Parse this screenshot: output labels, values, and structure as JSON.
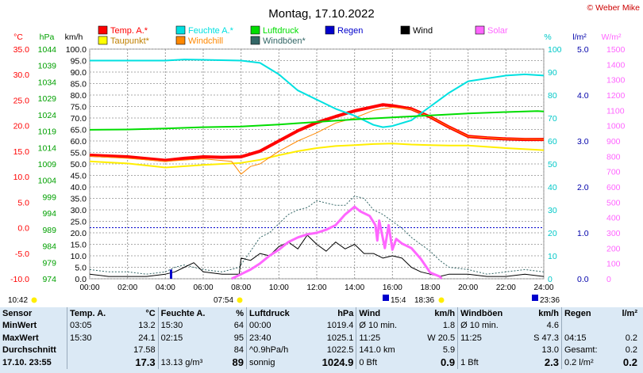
{
  "chart_data": {
    "type": "line",
    "title": "Montag, 17.10.2022",
    "copyright": "© Weber Mike",
    "axis_units": {
      "temp": "°C",
      "pressure": "hPa",
      "speed": "km/h",
      "humidity": "%",
      "rain": "l/m²",
      "solar": "W/m²"
    },
    "axes": {
      "temp": {
        "ticks": [
          "35.0",
          "30.0",
          "25.0",
          "20.0",
          "15.0",
          "10.0",
          "5.0",
          "0.0",
          "-5.0",
          "-10.0"
        ],
        "range": [
          -10,
          35
        ],
        "color": "#ff0000"
      },
      "pressure": {
        "ticks": [
          "1044",
          "1039",
          "1034",
          "1029",
          "1024",
          "1019",
          "1014",
          "1009",
          "1004",
          "999",
          "994",
          "989",
          "984",
          "979",
          "974"
        ],
        "range": [
          974,
          1044
        ],
        "color": "#00a000"
      },
      "speed": {
        "ticks": [
          "100.0",
          "95.0",
          "90.0",
          "85.0",
          "80.0",
          "75.0",
          "70.0",
          "65.0",
          "60.0",
          "55.0",
          "50.0",
          "45.0",
          "40.0",
          "35.0",
          "30.0",
          "25.0",
          "20.0",
          "15.0",
          "10.0",
          "5.0",
          "0.0"
        ],
        "range": [
          0,
          100
        ],
        "color": "#000000"
      },
      "humidity": {
        "ticks": [
          "100",
          "90",
          "80",
          "70",
          "60",
          "50",
          "40",
          "30",
          "20",
          "10",
          "0"
        ],
        "range": [
          0,
          100
        ],
        "color": "#00c8c8"
      },
      "rain": {
        "ticks": [
          "5.0",
          "4.0",
          "3.0",
          "2.0",
          "1.0",
          "0.0"
        ],
        "range": [
          0,
          5
        ],
        "color": "#0000aa"
      },
      "solar": {
        "ticks": [
          "1500",
          "1400",
          "1300",
          "1200",
          "1100",
          "1000",
          "900",
          "800",
          "700",
          "600",
          "500",
          "400",
          "300",
          "200",
          "100",
          "0"
        ],
        "range": [
          0,
          1500
        ],
        "color": "#ff66ff"
      }
    },
    "x_range": [
      0,
      24
    ],
    "x_ticks": [
      "00:00",
      "02:00",
      "04:00",
      "06:00",
      "08:00",
      "10:00",
      "12:00",
      "14:00",
      "16:00",
      "18:00",
      "20:00",
      "22:00",
      "24:00"
    ],
    "x_markers": [
      "10:42",
      "07:54",
      "15:4",
      "18:36",
      "23:36"
    ],
    "grid": true,
    "legend_position": "top",
    "legend": [
      {
        "label": "Temp. A.*",
        "color": "#ff0000"
      },
      {
        "label": "Feuchte A.*",
        "color": "#00e0e0"
      },
      {
        "label": "Luftdruck",
        "color": "#00dd00"
      },
      {
        "label": "Regen",
        "color": "#0000cc"
      },
      {
        "label": "Wind",
        "color": "#000000"
      },
      {
        "label": "Solar",
        "color": "#ff66ff"
      },
      {
        "label": "Taupunkt*",
        "color": "#ffff00"
      },
      {
        "label": "Windchill",
        "color": "#ff8800"
      },
      {
        "label": "Windböen*",
        "color": "#336666"
      }
    ],
    "series": [
      {
        "name": "Temp. A.*",
        "axis": "temp",
        "color": "#ff0000",
        "width": 4,
        "points": [
          [
            0,
            14.2
          ],
          [
            2,
            13.9
          ],
          [
            4,
            13.2
          ],
          [
            5,
            13.6
          ],
          [
            6,
            13.9
          ],
          [
            7,
            13.8
          ],
          [
            8,
            13.9
          ],
          [
            9,
            15.0
          ],
          [
            10,
            17.0
          ],
          [
            11,
            19.0
          ],
          [
            12,
            20.6
          ],
          [
            13,
            21.8
          ],
          [
            14,
            22.9
          ],
          [
            15,
            23.7
          ],
          [
            15.5,
            24.1
          ],
          [
            16,
            23.9
          ],
          [
            17,
            23.3
          ],
          [
            18,
            21.7
          ],
          [
            19,
            19.7
          ],
          [
            20,
            17.9
          ],
          [
            21,
            17.6
          ],
          [
            22,
            17.4
          ],
          [
            23,
            17.3
          ],
          [
            24,
            17.3
          ]
        ]
      },
      {
        "name": "Taupunkt*",
        "axis": "temp",
        "color": "#ffee00",
        "width": 2,
        "points": [
          [
            0,
            13.0
          ],
          [
            2,
            12.6
          ],
          [
            4,
            11.8
          ],
          [
            6,
            12.3
          ],
          [
            8,
            12.7
          ],
          [
            9,
            13.3
          ],
          [
            10,
            14.2
          ],
          [
            11,
            15.0
          ],
          [
            12,
            15.6
          ],
          [
            13,
            16.0
          ],
          [
            14,
            16.2
          ],
          [
            15,
            16.4
          ],
          [
            16,
            16.5
          ],
          [
            17,
            16.3
          ],
          [
            18,
            16.2
          ],
          [
            19,
            16.1
          ],
          [
            20,
            16.1
          ],
          [
            22,
            15.6
          ],
          [
            24,
            15.2
          ]
        ]
      },
      {
        "name": "Windchill",
        "axis": "temp",
        "color": "#ff8800",
        "width": 1,
        "points": [
          [
            0,
            14.0
          ],
          [
            2,
            13.6
          ],
          [
            4,
            13.0
          ],
          [
            6,
            13.5
          ],
          [
            7.5,
            13.0
          ],
          [
            7.9,
            11.0
          ],
          [
            8.0,
            10.5
          ],
          [
            8.5,
            12.0
          ],
          [
            9,
            12.5
          ],
          [
            10,
            15.0
          ],
          [
            11,
            17.0
          ],
          [
            12,
            18.6
          ],
          [
            13,
            20.5
          ],
          [
            14,
            21.5
          ],
          [
            15,
            23.0
          ],
          [
            16,
            23.6
          ],
          [
            17,
            23.2
          ],
          [
            18,
            21.7
          ],
          [
            19,
            19.7
          ],
          [
            20,
            17.9
          ],
          [
            22,
            17.4
          ],
          [
            24,
            17.3
          ]
        ]
      },
      {
        "name": "Feuchte A.*",
        "axis": "humidity",
        "color": "#00e0e0",
        "width": 2,
        "points": [
          [
            0,
            95
          ],
          [
            2,
            95
          ],
          [
            4,
            95
          ],
          [
            5,
            95.5
          ],
          [
            8,
            95
          ],
          [
            9,
            94
          ],
          [
            10,
            89
          ],
          [
            11,
            82
          ],
          [
            12,
            78
          ],
          [
            13,
            74
          ],
          [
            14,
            71
          ],
          [
            15,
            67
          ],
          [
            15.5,
            66
          ],
          [
            16,
            66.5
          ],
          [
            17,
            69
          ],
          [
            18,
            75
          ],
          [
            19,
            81
          ],
          [
            20,
            86
          ],
          [
            22,
            88.5
          ],
          [
            23,
            89
          ],
          [
            24,
            88.5
          ]
        ]
      },
      {
        "name": "Luftdruck",
        "axis": "pressure",
        "color": "#00dd00",
        "width": 2,
        "points": [
          [
            0,
            1019.4
          ],
          [
            2,
            1019.5
          ],
          [
            4,
            1019.8
          ],
          [
            6,
            1020.2
          ],
          [
            8,
            1020.4
          ],
          [
            10,
            1021.0
          ],
          [
            12,
            1021.8
          ],
          [
            14,
            1022.6
          ],
          [
            16,
            1023.2
          ],
          [
            18,
            1023.8
          ],
          [
            20,
            1024.4
          ],
          [
            22,
            1024.8
          ],
          [
            23.67,
            1025.1
          ],
          [
            24,
            1025.0
          ]
        ]
      },
      {
        "name": "Windböen*",
        "axis": "speed",
        "color": "#336666",
        "width": 1,
        "dash": "2,2",
        "points": [
          [
            0,
            4
          ],
          [
            1,
            3
          ],
          [
            2,
            3
          ],
          [
            3,
            2
          ],
          [
            4,
            3
          ],
          [
            4.5,
            5
          ],
          [
            5,
            6
          ],
          [
            6,
            4
          ],
          [
            7,
            3
          ],
          [
            7.9,
            5
          ],
          [
            8.5,
            12
          ],
          [
            9,
            18
          ],
          [
            9.5,
            20
          ],
          [
            10,
            24
          ],
          [
            10.5,
            28
          ],
          [
            11,
            30
          ],
          [
            11.5,
            31
          ],
          [
            12,
            34
          ],
          [
            12.5,
            33
          ],
          [
            13,
            32
          ],
          [
            13.5,
            32
          ],
          [
            14,
            36
          ],
          [
            14.5,
            35
          ],
          [
            15,
            30
          ],
          [
            15.5,
            28
          ],
          [
            16,
            25
          ],
          [
            16.5,
            22
          ],
          [
            17,
            18
          ],
          [
            17.5,
            15
          ],
          [
            18,
            12
          ],
          [
            18.5,
            8
          ],
          [
            19,
            5
          ],
          [
            20,
            4
          ],
          [
            21,
            2
          ],
          [
            22,
            3
          ],
          [
            23,
            4
          ],
          [
            24,
            3
          ]
        ]
      },
      {
        "name": "Wind",
        "axis": "speed",
        "color": "#000000",
        "width": 1,
        "points": [
          [
            0,
            2
          ],
          [
            1,
            1
          ],
          [
            2,
            1
          ],
          [
            3,
            1
          ],
          [
            4,
            2
          ],
          [
            4.5,
            3
          ],
          [
            5,
            5
          ],
          [
            5.5,
            7
          ],
          [
            6,
            3
          ],
          [
            7,
            2
          ],
          [
            7.9,
            2
          ],
          [
            8,
            9
          ],
          [
            8.5,
            8
          ],
          [
            9,
            11
          ],
          [
            9.5,
            10
          ],
          [
            10,
            14
          ],
          [
            10.5,
            16
          ],
          [
            11,
            13
          ],
          [
            11.5,
            19
          ],
          [
            12,
            15
          ],
          [
            12.5,
            12
          ],
          [
            13,
            16
          ],
          [
            13.5,
            13
          ],
          [
            14,
            15
          ],
          [
            14.5,
            11
          ],
          [
            15,
            11
          ],
          [
            15.5,
            9
          ],
          [
            16,
            10
          ],
          [
            16.5,
            9
          ],
          [
            17,
            5
          ],
          [
            17.5,
            3
          ],
          [
            18,
            2
          ],
          [
            18.5,
            1
          ],
          [
            19,
            2
          ],
          [
            20,
            2
          ],
          [
            21,
            1
          ],
          [
            22,
            1
          ],
          [
            23,
            2
          ],
          [
            24,
            1
          ]
        ]
      },
      {
        "name": "Solar",
        "axis": "solar",
        "color": "#ff66ff",
        "width": 3,
        "points": [
          [
            7.5,
            0
          ],
          [
            8,
            30
          ],
          [
            8.5,
            60
          ],
          [
            9,
            100
          ],
          [
            9.5,
            150
          ],
          [
            10,
            190
          ],
          [
            10.5,
            240
          ],
          [
            11,
            270
          ],
          [
            11.5,
            290
          ],
          [
            12,
            300
          ],
          [
            12.5,
            320
          ],
          [
            13,
            350
          ],
          [
            13.5,
            420
          ],
          [
            14,
            470
          ],
          [
            14.3,
            440
          ],
          [
            14.8,
            410
          ],
          [
            15.1,
            350
          ],
          [
            15.2,
            250
          ],
          [
            15.3,
            380
          ],
          [
            15.6,
            200
          ],
          [
            15.8,
            350
          ],
          [
            16.0,
            190
          ],
          [
            16.2,
            260
          ],
          [
            16.5,
            230
          ],
          [
            17,
            200
          ],
          [
            17.5,
            130
          ],
          [
            18,
            40
          ],
          [
            18.5,
            15
          ],
          [
            18.6,
            0
          ]
        ]
      }
    ],
    "rain_bars": [
      [
        4.3,
        0.2
      ]
    ]
  },
  "stats": {
    "head": {
      "sensor": "Sensor",
      "temp": "Temp. A.",
      "temp_unit": "°C",
      "hum": "Feuchte A.",
      "hum_unit": "%",
      "press": "Luftdruck",
      "press_unit": "hPa",
      "wind": "Wind",
      "wind_unit": "km/h",
      "gust": "Windböen",
      "gust_unit": "km/h",
      "rain": "Regen",
      "rain_unit": "l/m²"
    },
    "min": {
      "label": "MinWert",
      "temp_time": "03:05",
      "temp": "13.2",
      "hum_time": "15:30",
      "hum": "64",
      "press_time": "00:00",
      "press": "1019.4",
      "wind_label": "Ø 10 min.",
      "wind": "1.8",
      "gust_label": "Ø 10 min.",
      "gust": "4.6",
      "rain_time": "",
      "rain": ""
    },
    "max": {
      "label": "MaxWert",
      "temp_time": "15:30",
      "temp": "24.1",
      "hum_time": "02:15",
      "hum": "95",
      "press_time": "23:40",
      "press": "1025.1",
      "wind_time": "11:25",
      "wind": "W 20.5",
      "gust_time": "11:25",
      "gust": "S 47.3",
      "rain_time": "04:15",
      "rain": "0.2"
    },
    "avg": {
      "label": "Durchschnitt",
      "temp": "17.58",
      "hum": "84",
      "press_label": "^0.9hPa/h",
      "press": "1022.5",
      "wind_label": "141.0 km",
      "wind": "5.9",
      "gust": "13.0",
      "rain_label": "Gesamt:",
      "rain": "0.2"
    },
    "current": {
      "label": "17.10. 23:55",
      "temp": "17.3",
      "hum_label": "13.13 g/m³",
      "hum": "89",
      "press_label": "sonnig",
      "press": "1024.9",
      "wind_label": "0 Bft",
      "wind": "0.9",
      "gust_label": "1 Bft",
      "gust": "2.3",
      "rain_label": "0.2 l/m²",
      "rain": "0.2"
    }
  }
}
